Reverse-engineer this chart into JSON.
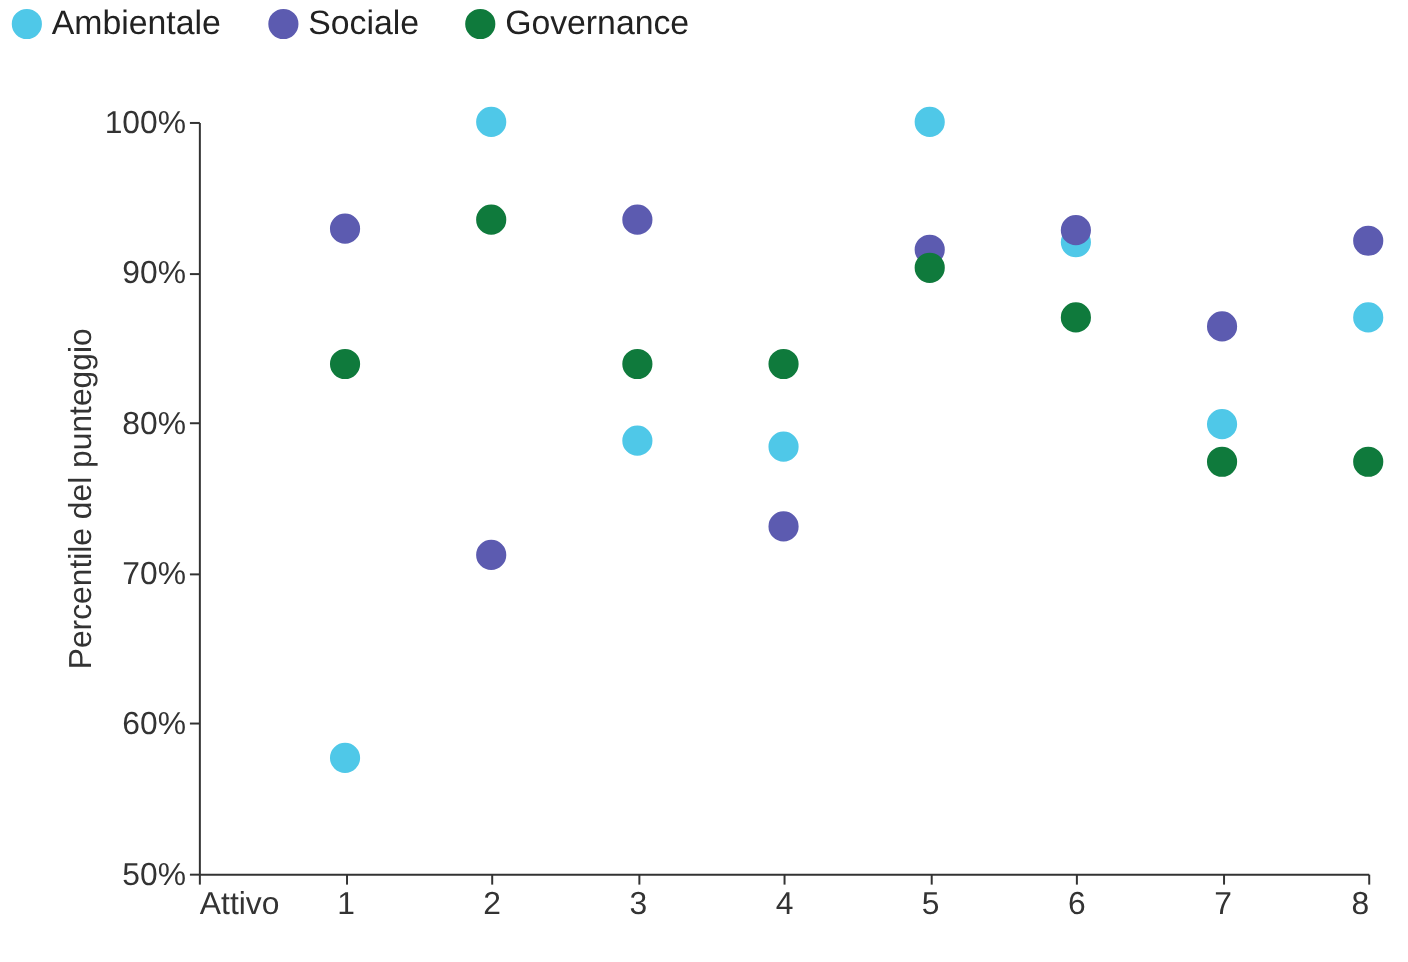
{
  "chart_data": {
    "type": "scatter",
    "ylabel": "Percentile del punteggio",
    "x": [
      1,
      2,
      3,
      4,
      5,
      6,
      7,
      8
    ],
    "series": [
      {
        "name": "Ambientale",
        "color": "#4fc8e8",
        "values": [
          57.7,
          100,
          78.8,
          78.4,
          100,
          92.0,
          79.9,
          87.0
        ]
      },
      {
        "name": "Sociale",
        "color": "#5c5bb0",
        "values": [
          92.9,
          71.2,
          93.5,
          73.1,
          91.5,
          92.8,
          86.4,
          92.1
        ]
      },
      {
        "name": "Governance",
        "color": "#0f7a3c",
        "values": [
          83.9,
          93.5,
          83.9,
          83.9,
          90.3,
          87.0,
          77.4,
          77.4
        ]
      }
    ],
    "xlim": [
      0,
      8
    ],
    "xticks": [
      {
        "value": 0,
        "label": "Attivo"
      },
      1,
      2,
      3,
      4,
      5,
      6,
      7,
      8
    ],
    "ylim": [
      50,
      100
    ],
    "yticks": [
      {
        "value": 50,
        "label": "50%"
      },
      {
        "value": 60,
        "label": "60%"
      },
      {
        "value": 70,
        "label": "70%"
      },
      {
        "value": 80,
        "label": "80%"
      },
      {
        "value": 90,
        "label": "90%"
      },
      {
        "value": 100,
        "label": "100%"
      }
    ],
    "grid": false,
    "legend": "top left",
    "marker": "circle"
  }
}
